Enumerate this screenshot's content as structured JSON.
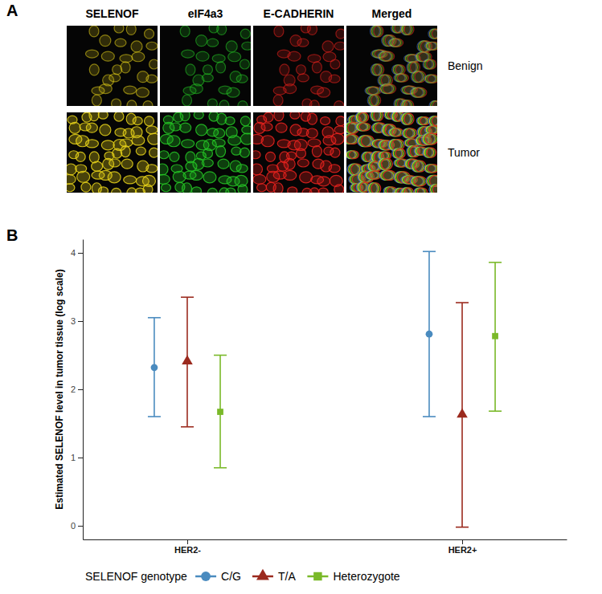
{
  "panel_a": {
    "letter": "A",
    "columns": [
      "SELENOF",
      "eIF4a3",
      "E-CADHERIN",
      "Merged"
    ],
    "rows": [
      "Benign",
      "Tumor"
    ]
  },
  "panel_b": {
    "letter": "B"
  },
  "chart_data": {
    "type": "pointrange",
    "ylabel": "Estimated SELENOF level in tumor tissue (log scale)",
    "categories": [
      "HER2-",
      "HER2+"
    ],
    "ylim": [
      -0.2,
      4.2
    ],
    "yticks": [
      0,
      1,
      2,
      3,
      4
    ],
    "grid": false,
    "legend": "bottom",
    "legend_title": "SELENOF genotype",
    "series": [
      {
        "name": "C/G",
        "color": "#4a8bbf",
        "marker": "circle",
        "values": [
          2.32,
          2.81
        ],
        "lower": [
          1.6,
          1.6
        ],
        "upper": [
          3.05,
          4.02
        ]
      },
      {
        "name": "T/A",
        "color": "#9b2a1e",
        "marker": "triangle",
        "values": [
          2.41,
          1.63
        ],
        "lower": [
          1.45,
          -0.02
        ],
        "upper": [
          3.35,
          3.27
        ]
      },
      {
        "name": "Heterozygote",
        "color": "#7ab929",
        "marker": "square",
        "values": [
          1.67,
          2.78
        ],
        "lower": [
          0.85,
          1.68
        ],
        "upper": [
          2.5,
          3.86
        ]
      }
    ]
  }
}
